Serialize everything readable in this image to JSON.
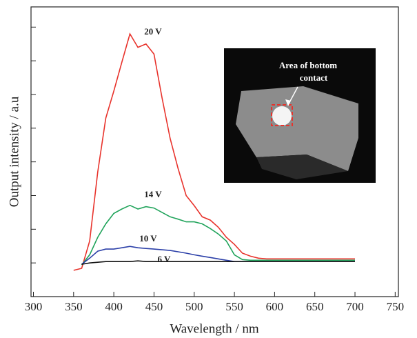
{
  "chart_data": {
    "type": "line",
    "x_label": "Wavelength / nm",
    "y_label": "Output intensity / a.u",
    "x": [
      350,
      360,
      370,
      380,
      390,
      400,
      410,
      420,
      430,
      440,
      450,
      460,
      470,
      480,
      490,
      500,
      510,
      520,
      530,
      540,
      550,
      560,
      570,
      580,
      590,
      600,
      610,
      620,
      630,
      640,
      650,
      660,
      670,
      680,
      690,
      700
    ],
    "series": [
      {
        "name": "20 V",
        "color": "#e8322b",
        "values": [
          -0.22,
          -0.16,
          0.65,
          2.7,
          4.3,
          5.1,
          5.96,
          6.8,
          6.4,
          6.5,
          6.2,
          4.9,
          3.7,
          2.8,
          2.0,
          1.7,
          1.37,
          1.27,
          1.06,
          0.76,
          0.55,
          0.29,
          0.2,
          0.14,
          0.12,
          0.12,
          0.12,
          0.12,
          0.12,
          0.12,
          0.12,
          0.12,
          0.12,
          0.12,
          0.12,
          0.12
        ]
      },
      {
        "name": "14 V",
        "color": "#1fa35a",
        "values": [
          null,
          -0.06,
          0.24,
          0.76,
          1.16,
          1.47,
          1.6,
          1.71,
          1.6,
          1.67,
          1.63,
          1.5,
          1.37,
          1.3,
          1.22,
          1.22,
          1.16,
          1.02,
          0.86,
          0.65,
          0.24,
          0.1,
          0.08,
          0.08,
          0.08,
          0.08,
          0.08,
          0.08,
          0.08,
          0.08,
          0.08,
          0.08,
          0.08,
          0.08,
          0.08,
          0.08
        ]
      },
      {
        "name": "10 V",
        "color": "#2b3fa8",
        "values": [
          null,
          -0.04,
          0.14,
          0.35,
          0.41,
          0.41,
          0.45,
          0.49,
          0.45,
          0.43,
          0.41,
          0.39,
          0.37,
          0.33,
          0.29,
          0.24,
          0.2,
          0.16,
          0.12,
          0.08,
          0.04,
          0.04,
          0.04,
          0.04,
          0.04,
          0.04,
          0.04,
          0.04,
          0.04,
          0.04,
          0.04,
          0.04,
          0.04,
          0.04,
          0.04,
          0.04
        ]
      },
      {
        "name": "6 V",
        "color": "#111111",
        "values": [
          null,
          -0.04,
          0,
          0.02,
          0.04,
          0.04,
          0.04,
          0.04,
          0.06,
          0.04,
          0.04,
          0.04,
          0.04,
          0.04,
          0.04,
          0.04,
          0.04,
          0.04,
          0.04,
          0.04,
          0.04,
          0.04,
          0.04,
          0.04,
          0.04,
          0.04,
          0.04,
          0.04,
          0.04,
          0.04,
          0.04,
          0.04,
          0.04,
          0.04,
          0.04,
          0.04
        ]
      }
    ],
    "xlim": [
      297,
      754
    ],
    "xticks": [
      300,
      350,
      400,
      450,
      500,
      550,
      600,
      650,
      700,
      750
    ],
    "ylim": [
      -1,
      7.6
    ],
    "yticks": [
      0,
      1,
      2,
      3,
      4,
      5,
      6,
      7
    ],
    "inset_text": [
      "Area of bottom",
      "contact"
    ]
  }
}
